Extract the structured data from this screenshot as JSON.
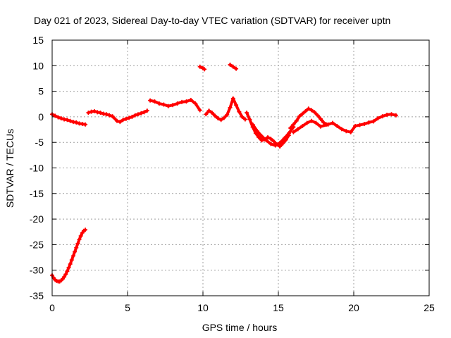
{
  "chart_data": {
    "type": "scatter",
    "title": "Day 021 of 2023, Sidereal Day-to-day VTEC variation (SDTVAR) for receiver uptn",
    "xlabel": "GPS time / hours",
    "ylabel": "SDTVAR / TECUs",
    "xlim": [
      0,
      25
    ],
    "ylim": [
      -35,
      15
    ],
    "xticks": [
      0,
      5,
      10,
      15,
      20,
      25
    ],
    "yticks": [
      15,
      10,
      5,
      0,
      -5,
      -10,
      -15,
      -20,
      -25,
      -30,
      -35
    ],
    "grid": true,
    "marker_color": "#ff0000",
    "series": [
      {
        "name": "SDTVAR",
        "x": [
          0.0,
          0.1,
          0.2,
          0.3,
          0.4,
          0.5,
          0.6,
          0.7,
          0.8,
          0.9,
          1.0,
          1.1,
          1.2,
          1.3,
          1.4,
          1.5,
          1.6,
          1.7,
          1.8,
          1.9,
          2.0,
          2.1,
          2.2,
          0.0,
          0.2,
          0.4,
          0.6,
          0.8,
          1.0,
          1.2,
          1.4,
          1.6,
          1.8,
          2.0,
          2.2,
          2.4,
          2.6,
          2.8,
          3.0,
          3.2,
          3.4,
          3.6,
          3.8,
          4.0,
          4.3,
          4.5,
          4.7,
          4.9,
          5.1,
          5.3,
          5.5,
          5.7,
          5.9,
          6.1,
          6.3,
          6.5,
          6.8,
          7.1,
          7.4,
          7.7,
          8.0,
          8.3,
          8.6,
          8.9,
          9.2,
          9.5,
          9.8,
          9.8,
          10.0,
          10.1,
          10.2,
          10.4,
          10.6,
          10.8,
          11.0,
          11.2,
          11.4,
          11.6,
          11.8,
          12.0,
          12.2,
          12.4,
          12.6,
          12.8,
          11.8,
          12.0,
          12.2,
          12.9,
          13.1,
          13.3,
          13.5,
          13.7,
          13.9,
          14.1,
          14.3,
          14.5,
          14.7,
          14.9,
          15.1,
          15.3,
          15.5,
          15.7,
          13.3,
          13.6,
          13.9,
          14.2,
          14.5,
          14.8,
          15.1,
          15.4,
          15.7,
          16.0,
          15.8,
          16.0,
          16.2,
          16.4,
          16.6,
          16.8,
          17.0,
          17.2,
          17.4,
          17.6,
          17.8,
          18.0,
          18.2,
          16.0,
          16.3,
          16.6,
          16.9,
          17.2,
          17.5,
          17.8,
          18.3,
          18.6,
          18.9,
          19.2,
          19.5,
          19.8,
          20.1,
          20.4,
          20.7,
          21.0,
          21.3,
          21.6,
          21.9,
          22.2,
          22.5,
          22.8
        ],
        "y": [
          -31.0,
          -31.5,
          -31.9,
          -32.1,
          -32.2,
          -32.2,
          -32.0,
          -31.7,
          -31.3,
          -30.8,
          -30.2,
          -29.5,
          -28.8,
          -28.0,
          -27.2,
          -26.4,
          -25.6,
          -24.8,
          -24.0,
          -23.3,
          -22.7,
          -22.3,
          -22.1,
          0.5,
          0.2,
          -0.1,
          -0.3,
          -0.5,
          -0.6,
          -0.8,
          -1.0,
          -1.1,
          -1.3,
          -1.4,
          -1.5,
          0.8,
          1.0,
          1.1,
          0.9,
          0.8,
          0.6,
          0.5,
          0.3,
          0.1,
          -0.8,
          -1.0,
          -0.6,
          -0.4,
          -0.2,
          0.0,
          0.3,
          0.5,
          0.7,
          0.9,
          1.2,
          3.2,
          3.0,
          2.6,
          2.4,
          2.1,
          2.3,
          2.6,
          2.9,
          3.0,
          3.3,
          2.6,
          1.3,
          9.8,
          9.5,
          9.3,
          0.5,
          1.2,
          0.8,
          0.2,
          -0.3,
          -0.6,
          -0.2,
          0.4,
          1.8,
          3.6,
          2.3,
          1.0,
          0.0,
          -0.5,
          10.2,
          9.8,
          9.4,
          0.8,
          -0.5,
          -2.0,
          -3.2,
          -4.0,
          -4.6,
          -4.4,
          -4.0,
          -4.3,
          -4.8,
          -5.4,
          -5.8,
          -5.2,
          -4.5,
          -3.6,
          -1.5,
          -2.8,
          -3.8,
          -4.6,
          -5.3,
          -5.6,
          -5.1,
          -4.2,
          -3.2,
          -2.0,
          -2.2,
          -1.5,
          -0.8,
          0.1,
          0.6,
          1.1,
          1.6,
          1.3,
          0.9,
          0.3,
          -0.4,
          -1.1,
          -1.5,
          -3.0,
          -2.4,
          -1.8,
          -1.2,
          -0.8,
          -1.2,
          -1.9,
          -1.5,
          -1.2,
          -1.8,
          -2.4,
          -2.8,
          -3.0,
          -1.8,
          -1.6,
          -1.4,
          -1.1,
          -0.9,
          -0.3,
          0.1,
          0.4,
          0.5,
          0.3
        ]
      }
    ]
  }
}
